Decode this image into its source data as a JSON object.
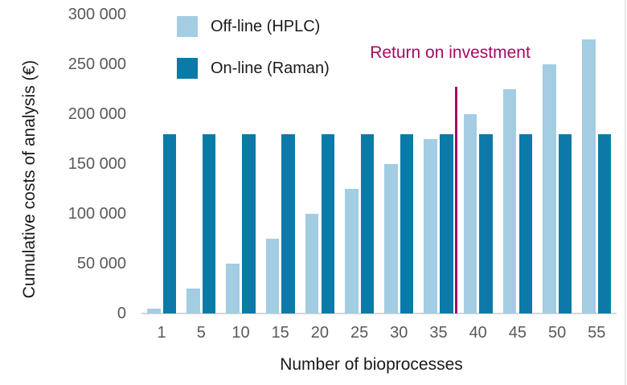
{
  "chart_data": {
    "type": "bar",
    "title": "",
    "xlabel": "Number of bioprocesses",
    "ylabel": "Cumulative costs of analysis (€)",
    "categories": [
      "1",
      "5",
      "10",
      "15",
      "20",
      "25",
      "30",
      "35",
      "40",
      "45",
      "50",
      "55"
    ],
    "series": [
      {
        "name": "Off-line (HPLC)",
        "color": "#a3cde3",
        "values": [
          5000,
          25000,
          50000,
          75000,
          100000,
          125000,
          150000,
          175000,
          200000,
          225000,
          250000,
          275000
        ]
      },
      {
        "name": "On-line (Raman)",
        "color": "#0c7aa8",
        "values": [
          180000,
          180000,
          180000,
          180000,
          180000,
          180000,
          180000,
          180000,
          180000,
          180000,
          180000,
          180000
        ]
      }
    ],
    "ylim": [
      0,
      300000
    ],
    "ytick_labels": [
      "0",
      "50 000",
      "100 000",
      "150 000",
      "200 000",
      "250 000",
      "300 000"
    ],
    "ytick_values": [
      0,
      50000,
      100000,
      150000,
      200000,
      250000,
      300000
    ],
    "grid": false,
    "legend_position": "top-left-inside",
    "annotation": {
      "label": "Return on investment",
      "color": "#a50a62",
      "x_position_between_categories": [
        "35",
        "40"
      ]
    },
    "colors": {
      "offline_bar": "#a3cde3",
      "online_bar": "#0c7aa8",
      "tick_text": "#595959",
      "title_text": "#1a1a1a",
      "axis_line": "#d6d6d6",
      "roi_line": "#a50a62"
    }
  }
}
